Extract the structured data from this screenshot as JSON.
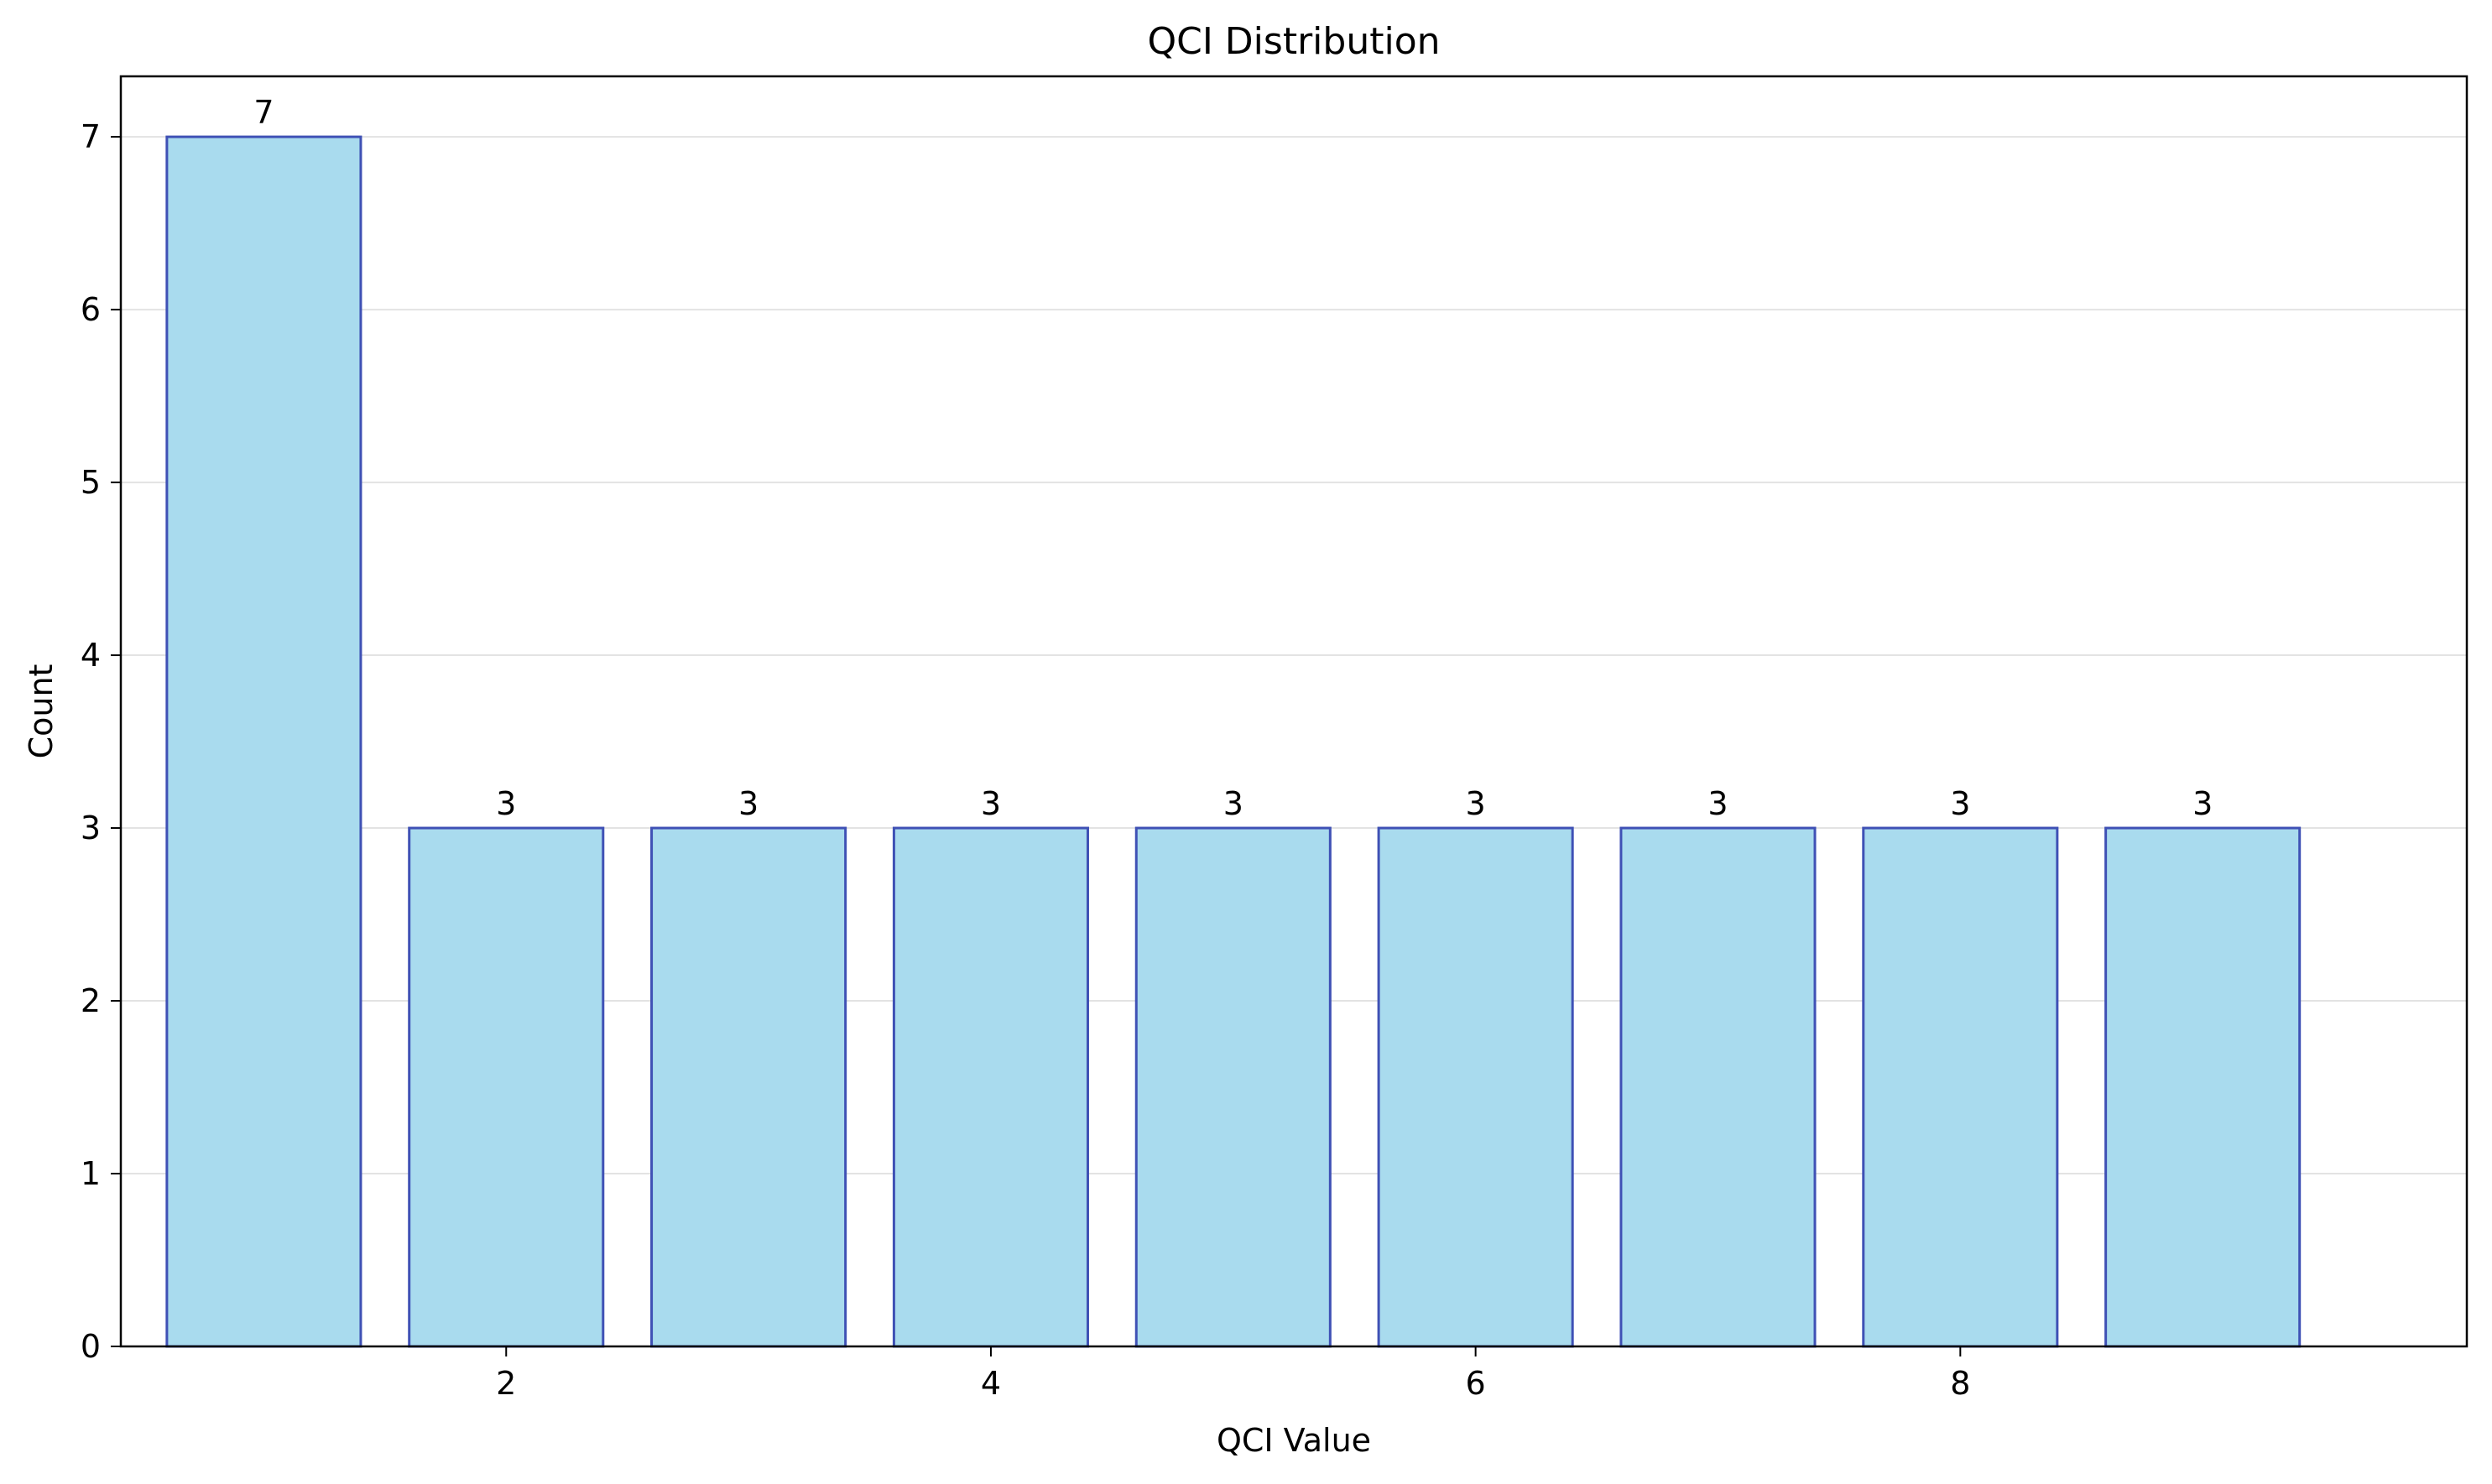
{
  "chart_data": {
    "type": "bar",
    "title": "QCI Distribution",
    "xlabel": "QCI Value",
    "ylabel": "Count",
    "x": [
      1,
      2,
      3,
      4,
      5,
      6,
      7,
      8,
      9
    ],
    "values": [
      7,
      3,
      3,
      3,
      3,
      3,
      3,
      3,
      3
    ],
    "xlim": [
      0.41,
      10.09
    ],
    "ylim": [
      0,
      7.35
    ],
    "xticks": [
      2,
      4,
      6,
      8
    ],
    "yticks": [
      0,
      1,
      2,
      3,
      4,
      5,
      6,
      7
    ],
    "grid": "y",
    "bar_labels": true,
    "colors": {
      "bar_fill": "#a9dbee",
      "bar_edge": "#3f51b5",
      "grid": "#e3e3e3",
      "axis": "#000000"
    }
  }
}
